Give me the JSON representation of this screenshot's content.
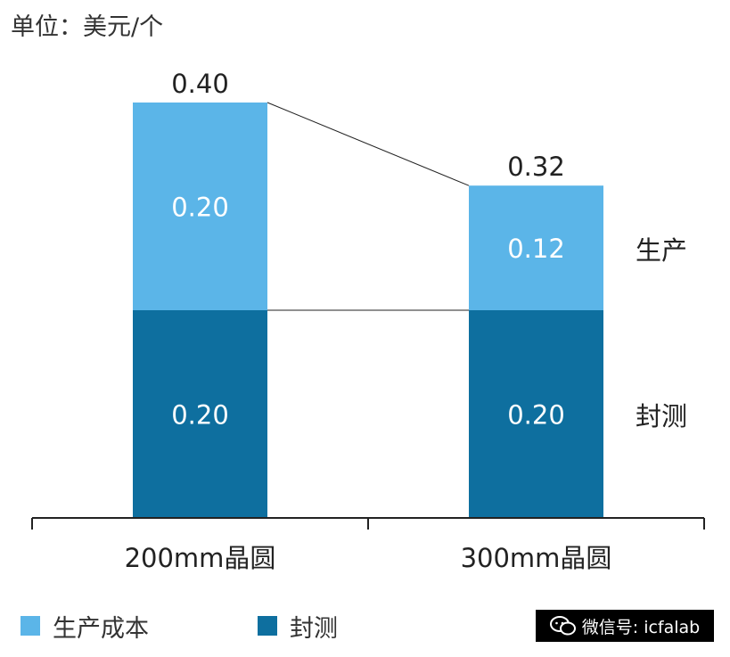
{
  "unit_label": "单位：美元/个",
  "legend": [
    {
      "label": "生产成本",
      "color": "#5bb5e8"
    },
    {
      "label": "封测",
      "color": "#0e6f9f"
    }
  ],
  "right_labels": [
    "生产",
    "封测"
  ],
  "watermark": {
    "text": "微信号: icfalab",
    "icon": "wechat-icon"
  },
  "chart_data": {
    "type": "bar",
    "stacked": true,
    "categories": [
      "200mm晶圆",
      "300mm晶圆"
    ],
    "series": [
      {
        "name": "封测",
        "values": [
          0.2,
          0.2
        ],
        "labels": [
          "0.20",
          "0.20"
        ],
        "color": "#0e6f9f"
      },
      {
        "name": "生产成本",
        "values": [
          0.2,
          0.12
        ],
        "labels": [
          "0.20",
          "0.12"
        ],
        "color": "#5bb5e8"
      }
    ],
    "totals": [
      0.4,
      0.32
    ],
    "total_labels": [
      "0.40",
      "0.32"
    ],
    "ylim": [
      0,
      0.4
    ],
    "xlabel": "",
    "ylabel": "",
    "legend_position": "bottom-left"
  }
}
